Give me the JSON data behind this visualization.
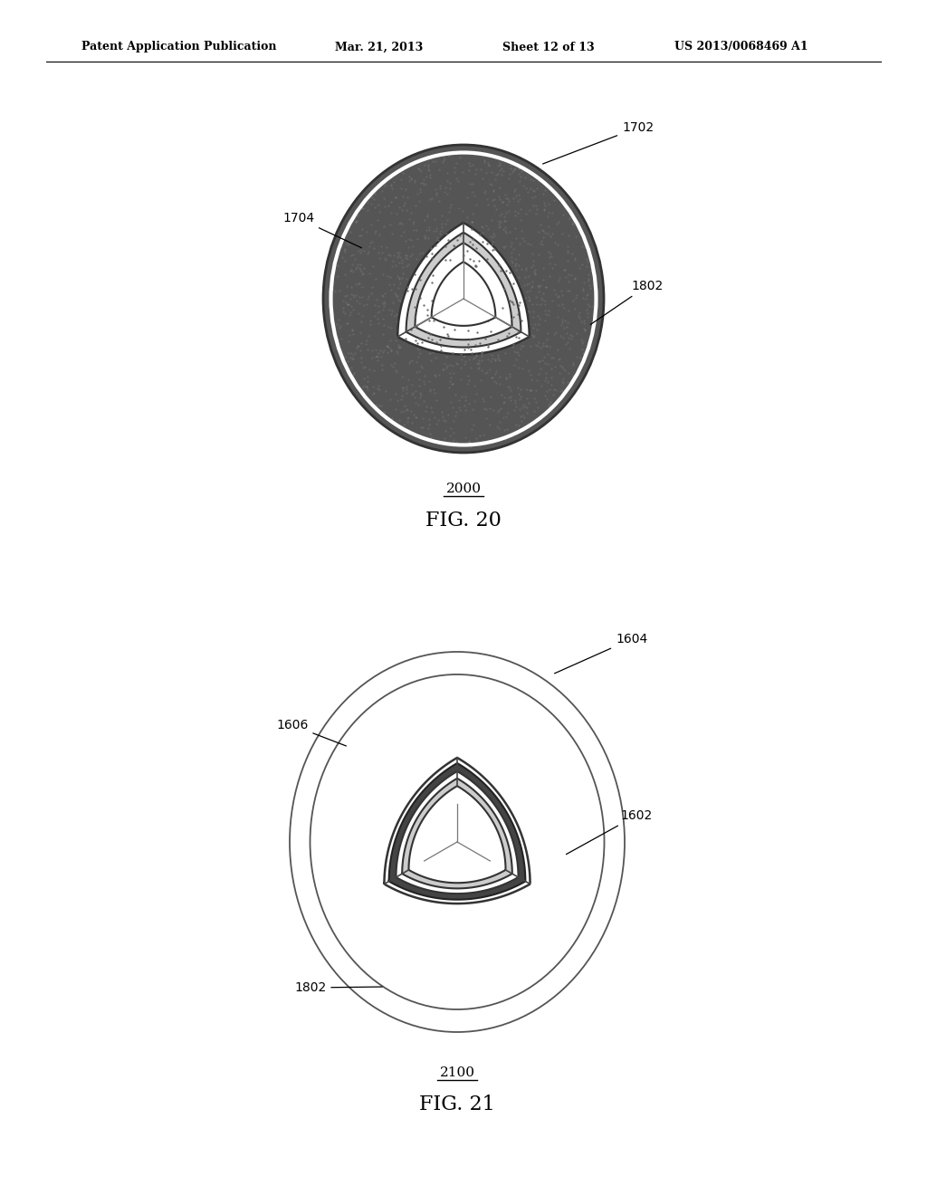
{
  "bg_color": "#ffffff",
  "header_text": "Patent Application Publication",
  "header_date": "Mar. 21, 2013",
  "header_sheet": "Sheet 12 of 13",
  "header_patent": "US 2013/0068469 A1",
  "fig20_label": "FIG. 20",
  "fig20_num": "2000",
  "fig21_label": "FIG. 21",
  "fig21_num": "2100",
  "text_color": "#000000"
}
